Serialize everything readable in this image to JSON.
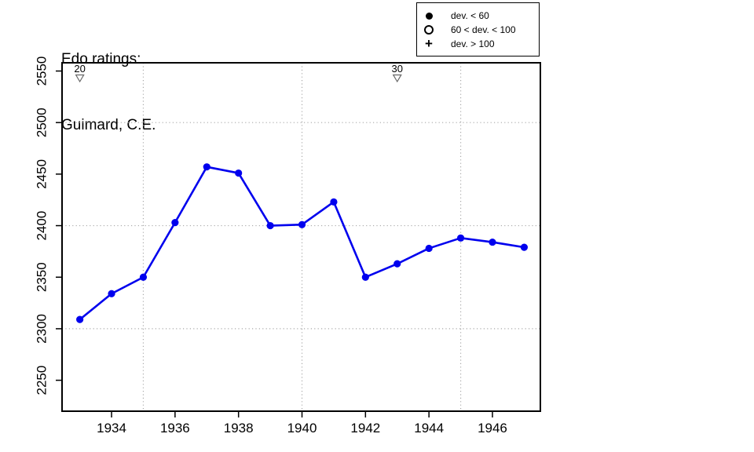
{
  "page": {
    "background": "#ffffff"
  },
  "title": {
    "line1": "Edo ratings:",
    "line2": "Guimard, C.E."
  },
  "legend": {
    "items": [
      {
        "symbol": "filled-circle",
        "label": "dev. < 60"
      },
      {
        "symbol": "open-circle",
        "label": "60 < dev. < 100"
      },
      {
        "symbol": "plus",
        "label": "dev. > 100"
      }
    ]
  },
  "chart_data": {
    "type": "line",
    "title": "Edo ratings: Guimard, C.E.",
    "xlabel": "",
    "ylabel": "",
    "x": [
      1933,
      1934,
      1935,
      1936,
      1937,
      1938,
      1939,
      1940,
      1941,
      1942,
      1943,
      1944,
      1945,
      1946,
      1947
    ],
    "series": [
      {
        "name": "Edo rating",
        "marker": "filled-circle (dev. < 60)",
        "values": [
          2309,
          2334,
          2350,
          2403,
          2457,
          2451,
          2400,
          2401,
          2423,
          2350,
          2363,
          2378,
          2388,
          2384,
          2379
        ]
      }
    ],
    "xticks": [
      1934,
      1936,
      1938,
      1940,
      1942,
      1944,
      1946
    ],
    "yticks": [
      2250,
      2300,
      2350,
      2400,
      2450,
      2500,
      2550
    ],
    "xlim": [
      1932.44,
      1947.51
    ],
    "ylim": [
      2220,
      2558
    ],
    "grid": {
      "x": [
        1935,
        1940,
        1945
      ],
      "y": [
        2300,
        2400,
        2500
      ],
      "style": "dotted"
    },
    "annotations": [
      {
        "x": 1933,
        "label": "20",
        "symbol": "triangle-down"
      },
      {
        "x": 1943,
        "label": "30",
        "symbol": "triangle-down"
      }
    ],
    "legend_position": "top-right",
    "colors": {
      "line": "#0000ee",
      "marker": "#0000ee",
      "grid": "#aaaaaa",
      "frame": "#000000",
      "text": "#000000",
      "triangle_stroke": "#666666"
    }
  }
}
